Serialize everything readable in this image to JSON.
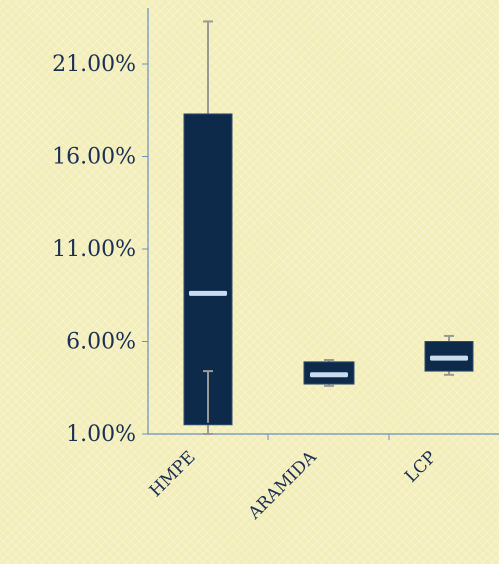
{
  "chart_data": {
    "type": "boxplot",
    "categories": [
      "HMPE",
      "ARAMIDA",
      "LCP"
    ],
    "yticks": [
      "1.00%",
      "6.00%",
      "11.00%",
      "16.00%",
      "21.00%"
    ],
    "ytick_values": [
      1,
      6,
      11,
      16,
      21
    ],
    "ylim": [
      1,
      24
    ],
    "series": [
      {
        "category": "HMPE",
        "min": 1.0,
        "q1": 1.5,
        "median": 8.6,
        "q3": 18.3,
        "max": 23.3,
        "lower_whisker_label_point": 4.4
      },
      {
        "category": "ARAMIDA",
        "min": 3.6,
        "q1": 3.7,
        "median": 4.2,
        "q3": 4.9,
        "max": 5.0
      },
      {
        "category": "LCP",
        "min": 4.2,
        "q1": 4.4,
        "median": 5.1,
        "q3": 6.0,
        "max": 6.3
      }
    ],
    "grid": false,
    "colors": {
      "box": "#0d2a4a",
      "median": "#c9dcf0",
      "whisker": "#9a9a94",
      "axis": "#6a8fc0",
      "text": "#1b2f55"
    }
  }
}
